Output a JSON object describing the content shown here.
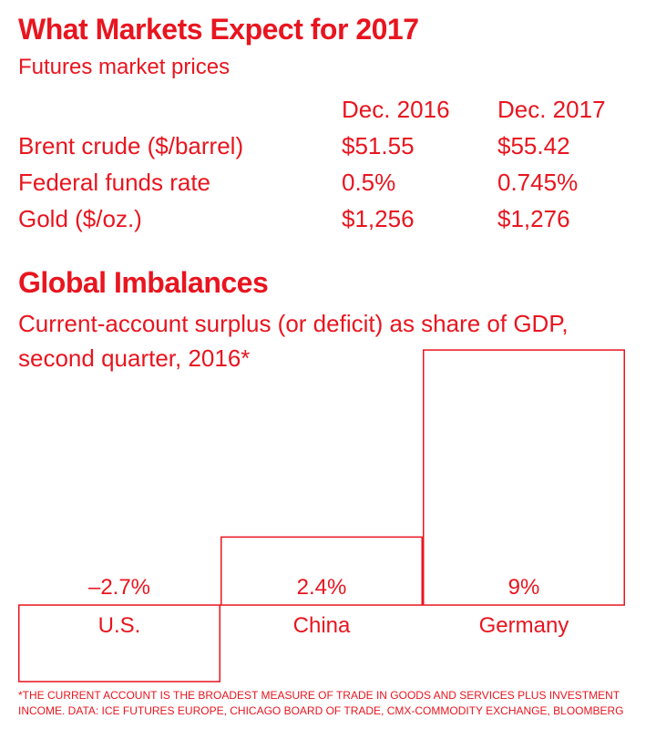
{
  "header": {
    "title": "What Markets Expect for 2017",
    "subtitle": "Futures market prices"
  },
  "futures": {
    "columns": [
      "Dec. 2016",
      "Dec. 2017"
    ],
    "rows": [
      {
        "label": "Brent crude ($/barrel)",
        "dec2016": "$51.55",
        "dec2017": "$55.42"
      },
      {
        "label": "Federal funds rate",
        "dec2016": "0.5%",
        "dec2017": "0.745%"
      },
      {
        "label": "Gold ($/oz.)",
        "dec2016": "$1,256",
        "dec2017": "$1,276"
      }
    ]
  },
  "imbalances": {
    "title": "Global Imbalances",
    "subtitle_line1": "Current-account surplus (or deficit) as share of GDP,",
    "subtitle_line2": "second quarter, 2016*"
  },
  "chart_data": {
    "type": "bar",
    "title": "Global Imbalances",
    "subtitle": "Current-account surplus (or deficit) as share of GDP, second quarter, 2016*",
    "categories": [
      "U.S.",
      "China",
      "Germany"
    ],
    "values": [
      -2.7,
      2.4,
      9
    ],
    "value_labels": [
      "–2.7%",
      "2.4%",
      "9%"
    ],
    "units": "% of GDP",
    "ylim": [
      -3,
      9
    ],
    "grid": false,
    "legend": "none"
  },
  "footnote": {
    "line1": "*THE CURRENT ACCOUNT IS THE BROADEST MEASURE OF TRADE IN GOODS AND SERVICES PLUS INVESTMENT",
    "line2": "INCOME. DATA: ICE FUTURES EUROPE, CHICAGO BOARD OF TRADE, CMX-COMMODITY EXCHANGE, BLOOMBERG"
  },
  "colors": {
    "accent": "#e8151f",
    "background": "#ffffff"
  }
}
